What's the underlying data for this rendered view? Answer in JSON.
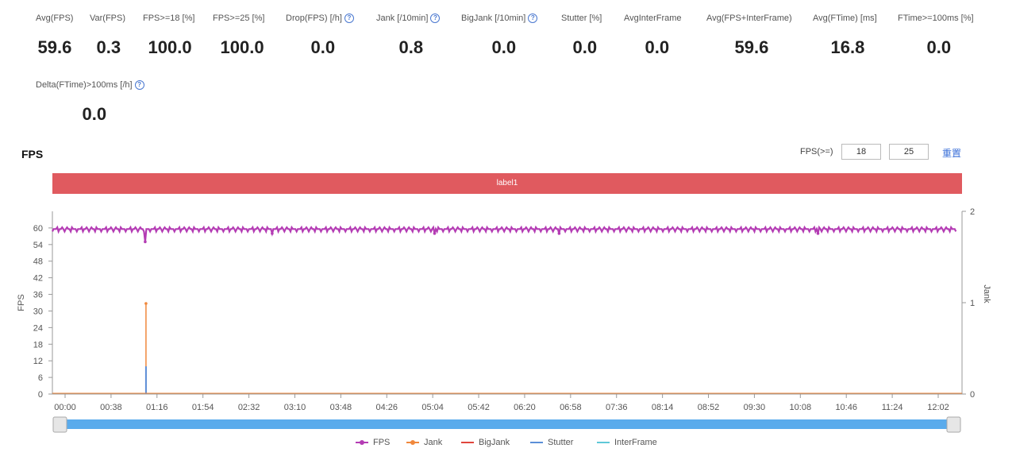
{
  "stats": [
    {
      "label": "Avg(FPS)",
      "value": "59.6",
      "info": false
    },
    {
      "label": "Var(FPS)",
      "value": "0.3",
      "info": false
    },
    {
      "label": "FPS>=18 [%]",
      "value": "100.0",
      "info": false
    },
    {
      "label": "FPS>=25 [%]",
      "value": "100.0",
      "info": false
    },
    {
      "label": "Drop(FPS) [/h]",
      "value": "0.0",
      "info": true
    },
    {
      "label": "Jank [/10min]",
      "value": "0.8",
      "info": true
    },
    {
      "label": "BigJank [/10min]",
      "value": "0.0",
      "info": true
    },
    {
      "label": "Stutter [%]",
      "value": "0.0",
      "info": false
    },
    {
      "label": "AvgInterFrame",
      "value": "0.0",
      "info": false
    },
    {
      "label": "Avg(FPS+InterFrame)",
      "value": "59.6",
      "info": false
    },
    {
      "label": "Avg(FTime) [ms]",
      "value": "16.8",
      "info": false
    },
    {
      "label": "FTime>=100ms [%]",
      "value": "0.0",
      "info": false
    },
    {
      "label": "Delta(FTime)>100ms [/h]",
      "value": "0.0",
      "info": true
    }
  ],
  "controls": {
    "chart_title": "FPS",
    "threshold_label": "FPS(>=)",
    "threshold_1": "18",
    "threshold_2": "25",
    "reset_label": "重置",
    "label_bar_text": "label1"
  },
  "colors": {
    "fps": "#b43cb4",
    "jank": "#f0883c",
    "bigjank": "#e0453c",
    "stutter": "#5b8fd8",
    "interframe": "#5fc8d8",
    "label_bar": "#e05a5f",
    "scroll_bar": "#5aabec"
  },
  "chart_data": {
    "type": "line",
    "xlabel": "",
    "ylabel": "FPS",
    "y2label": "Jank",
    "ylim": [
      0,
      66
    ],
    "y2lim": [
      0,
      2
    ],
    "yticks": [
      "0",
      "6",
      "12",
      "18",
      "24",
      "30",
      "36",
      "42",
      "48",
      "54",
      "60"
    ],
    "y2ticks": [
      "0",
      "1",
      "2"
    ],
    "xticks": [
      "00:00",
      "00:38",
      "01:16",
      "01:54",
      "02:32",
      "03:10",
      "03:48",
      "04:26",
      "05:04",
      "05:42",
      "06:20",
      "06:58",
      "07:36",
      "08:14",
      "08:52",
      "09:30",
      "10:08",
      "10:46",
      "11:24",
      "12:02"
    ],
    "x_range_seconds": [
      0,
      745
    ],
    "series": [
      {
        "name": "FPS",
        "baseline": 59.6,
        "dips": [
          [
            76,
            55
          ],
          [
            180,
            58
          ],
          [
            313,
            58
          ],
          [
            415,
            58
          ],
          [
            627,
            58
          ]
        ]
      },
      {
        "name": "Jank",
        "events": [
          [
            76,
            1
          ]
        ]
      },
      {
        "name": "BigJank",
        "events": []
      },
      {
        "name": "Stutter",
        "events": [
          [
            76,
            10
          ]
        ]
      },
      {
        "name": "InterFrame",
        "events": []
      }
    ],
    "legend": [
      "FPS",
      "Jank",
      "BigJank",
      "Stutter",
      "InterFrame"
    ],
    "legend_position": "bottom"
  }
}
